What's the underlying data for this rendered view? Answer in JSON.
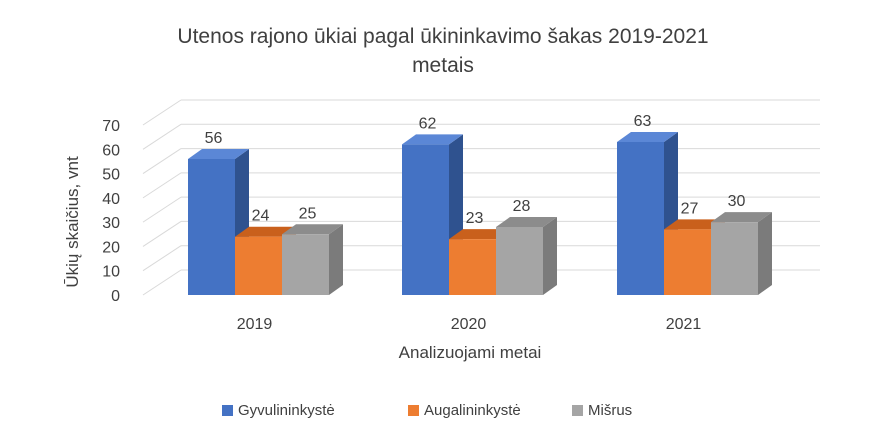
{
  "chart_data": {
    "type": "bar",
    "title": "Utenos rajono ūkiai pagal ūkininkavimo šakas 2019-2021 metais",
    "title_lines": [
      "Utenos rajono ūkiai pagal ūkininkavimo šakas 2019-2021",
      "metais"
    ],
    "xlabel": "Analizuojami metai",
    "ylabel": "Ūkių skaičius, vnt",
    "categories": [
      "2019",
      "2020",
      "2021"
    ],
    "series": [
      {
        "name": "Gyvulininkystė",
        "values": [
          56,
          62,
          63
        ],
        "color": "#4472C4",
        "side_color": "#2F528F",
        "top_color": "#5B87D6"
      },
      {
        "name": "Augalininkystė",
        "values": [
          24,
          23,
          27
        ],
        "color": "#ED7D31",
        "side_color": "#B75F22",
        "top_color": "#C9601C"
      },
      {
        "name": "Mišrus",
        "values": [
          25,
          28,
          30
        ],
        "color": "#A5A5A5",
        "side_color": "#7B7B7B",
        "top_color": "#8C8C8C"
      }
    ],
    "ylim": [
      0,
      70
    ],
    "yticks": [
      0,
      10,
      20,
      30,
      40,
      50,
      60,
      70
    ],
    "grid": true,
    "legend_position": "bottom",
    "style": "3d-clustered-column"
  }
}
